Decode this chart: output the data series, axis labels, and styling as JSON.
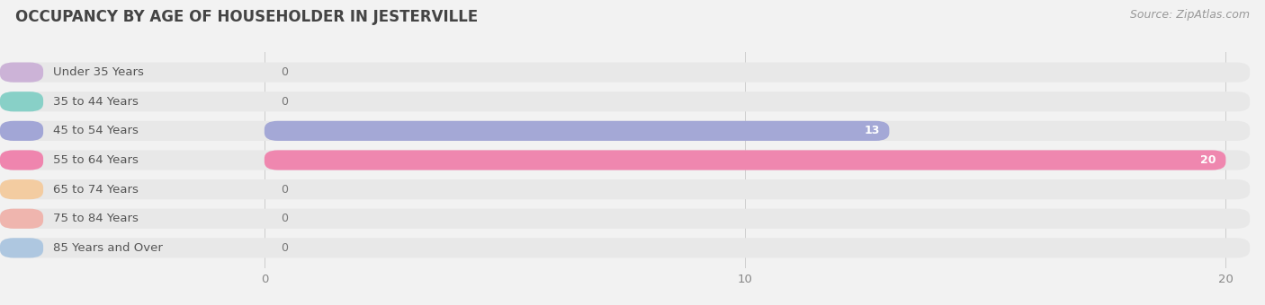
{
  "title": "OCCUPANCY BY AGE OF HOUSEHOLDER IN JESTERVILLE",
  "source": "Source: ZipAtlas.com",
  "categories": [
    "Under 35 Years",
    "35 to 44 Years",
    "45 to 54 Years",
    "55 to 64 Years",
    "65 to 74 Years",
    "75 to 84 Years",
    "85 Years and Over"
  ],
  "values": [
    0,
    0,
    13,
    20,
    0,
    0,
    0
  ],
  "bar_colors": [
    "#c9aed6",
    "#7ecec4",
    "#9b9fd4",
    "#f07aa8",
    "#f5c99a",
    "#f0b0a8",
    "#a8c4e0"
  ],
  "background_color": "#f2f2f2",
  "bar_background_color": "#e8e8e8",
  "xlim": [
    0,
    20
  ],
  "xticks": [
    0,
    10,
    20
  ],
  "title_fontsize": 12,
  "label_fontsize": 9.5,
  "value_fontsize": 9,
  "source_fontsize": 9
}
